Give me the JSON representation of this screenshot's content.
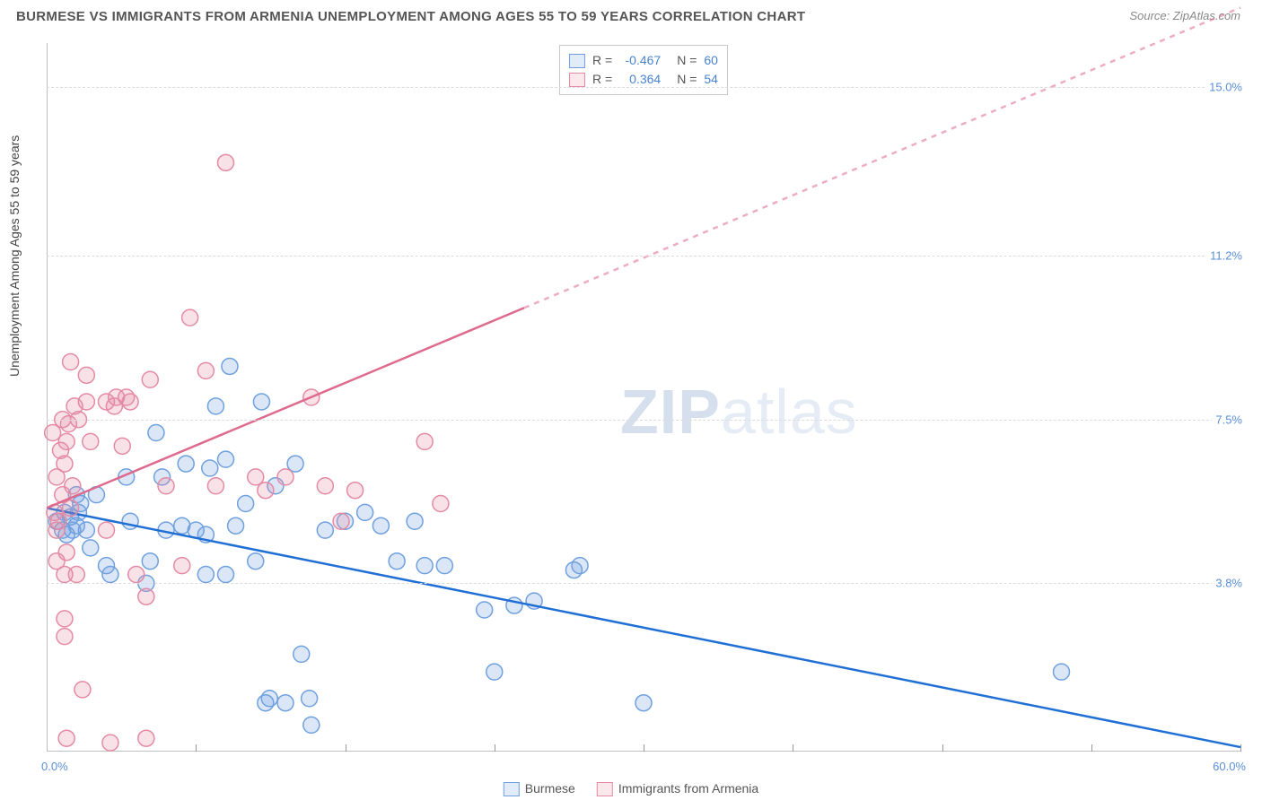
{
  "title": "BURMESE VS IMMIGRANTS FROM ARMENIA UNEMPLOYMENT AMONG AGES 55 TO 59 YEARS CORRELATION CHART",
  "source": "Source: ZipAtlas.com",
  "y_axis_label": "Unemployment Among Ages 55 to 59 years",
  "watermark_bold": "ZIP",
  "watermark_rest": "atlas",
  "chart": {
    "type": "scatter-correlation",
    "xlim": [
      0.0,
      60.0
    ],
    "ylim": [
      0.0,
      16.0
    ],
    "x_min_label": "0.0%",
    "x_max_label": "60.0%",
    "y_ticks": [
      3.8,
      7.5,
      11.2,
      15.0
    ],
    "y_tick_labels": [
      "3.8%",
      "7.5%",
      "11.2%",
      "15.0%"
    ],
    "x_tick_positions": [
      7.5,
      15,
      22.5,
      30,
      37.5,
      45,
      52.5,
      60
    ],
    "grid_color": "#dcdcdc",
    "axis_color": "#c0c0c0",
    "marker_radius": 9,
    "marker_fill_opacity": 0.25,
    "marker_stroke_width": 1.5,
    "trend_line_width": 2.5,
    "series": [
      {
        "name": "Burmese",
        "color": "#6fa0df",
        "trend_color": "#1f6fd4",
        "trend": {
          "x1": 0,
          "y1": 5.5,
          "x2": 60,
          "y2": 0.1
        },
        "trend_dash_after_x": 60,
        "data": [
          [
            0.5,
            5.2
          ],
          [
            0.8,
            5.0
          ],
          [
            0.9,
            5.4
          ],
          [
            1.0,
            4.9
          ],
          [
            1.2,
            5.3
          ],
          [
            1.3,
            5.0
          ],
          [
            1.5,
            5.1
          ],
          [
            1.6,
            5.4
          ],
          [
            1.7,
            5.6
          ],
          [
            1.5,
            5.8
          ],
          [
            2.0,
            5.0
          ],
          [
            2.2,
            4.6
          ],
          [
            2.5,
            5.8
          ],
          [
            3.0,
            4.2
          ],
          [
            3.2,
            4.0
          ],
          [
            4.0,
            6.2
          ],
          [
            4.2,
            5.2
          ],
          [
            5.0,
            3.8
          ],
          [
            5.2,
            4.3
          ],
          [
            5.5,
            7.2
          ],
          [
            5.8,
            6.2
          ],
          [
            6.0,
            5.0
          ],
          [
            6.8,
            5.1
          ],
          [
            7.0,
            6.5
          ],
          [
            7.5,
            5.0
          ],
          [
            8.0,
            4.9
          ],
          [
            8.0,
            4.0
          ],
          [
            8.2,
            6.4
          ],
          [
            8.5,
            7.8
          ],
          [
            9.0,
            6.6
          ],
          [
            9.0,
            4.0
          ],
          [
            9.5,
            5.1
          ],
          [
            10.0,
            5.6
          ],
          [
            10.5,
            4.3
          ],
          [
            10.8,
            7.9
          ],
          [
            11.0,
            1.1
          ],
          [
            11.2,
            1.2
          ],
          [
            11.5,
            6.0
          ],
          [
            12.0,
            1.1
          ],
          [
            12.5,
            6.5
          ],
          [
            13.2,
            1.2
          ],
          [
            13.3,
            0.6
          ],
          [
            14.0,
            5.0
          ],
          [
            15.0,
            5.2
          ],
          [
            16.0,
            5.4
          ],
          [
            16.8,
            5.1
          ],
          [
            17.6,
            4.3
          ],
          [
            18.5,
            5.2
          ],
          [
            19.0,
            4.2
          ],
          [
            20.0,
            4.2
          ],
          [
            22.0,
            3.2
          ],
          [
            22.5,
            1.8
          ],
          [
            23.5,
            3.3
          ],
          [
            24.5,
            3.4
          ],
          [
            26.5,
            4.1
          ],
          [
            26.8,
            4.2
          ],
          [
            30.0,
            1.1
          ],
          [
            51.0,
            1.8
          ],
          [
            9.2,
            8.7
          ],
          [
            12.8,
            2.2
          ]
        ]
      },
      {
        "name": "Immigrants from Armenia",
        "color": "#e48aa4",
        "trend_color": "#de6a8e",
        "trend": {
          "x1": 0,
          "y1": 5.5,
          "x2": 60,
          "y2": 16.8
        },
        "trend_dash_after_x": 24,
        "data": [
          [
            0.3,
            7.2
          ],
          [
            0.4,
            5.4
          ],
          [
            0.5,
            5.0
          ],
          [
            0.5,
            4.3
          ],
          [
            0.5,
            6.2
          ],
          [
            0.6,
            5.2
          ],
          [
            0.7,
            6.8
          ],
          [
            0.8,
            5.8
          ],
          [
            0.8,
            7.5
          ],
          [
            0.9,
            6.5
          ],
          [
            0.9,
            3.0
          ],
          [
            0.9,
            4.0
          ],
          [
            0.9,
            2.6
          ],
          [
            1.0,
            4.5
          ],
          [
            1.0,
            0.3
          ],
          [
            1.0,
            7.0
          ],
          [
            1.1,
            7.4
          ],
          [
            1.2,
            5.5
          ],
          [
            1.2,
            8.8
          ],
          [
            1.3,
            6.0
          ],
          [
            1.4,
            7.8
          ],
          [
            1.5,
            4.0
          ],
          [
            1.6,
            7.5
          ],
          [
            1.8,
            1.4
          ],
          [
            2.0,
            7.9
          ],
          [
            2.0,
            8.5
          ],
          [
            2.2,
            7.0
          ],
          [
            3.0,
            7.9
          ],
          [
            3.0,
            5.0
          ],
          [
            3.4,
            7.8
          ],
          [
            3.5,
            8.0
          ],
          [
            3.8,
            6.9
          ],
          [
            4.0,
            8.0
          ],
          [
            4.2,
            7.9
          ],
          [
            4.5,
            4.0
          ],
          [
            5.0,
            3.5
          ],
          [
            5.2,
            8.4
          ],
          [
            6.0,
            6.0
          ],
          [
            6.8,
            4.2
          ],
          [
            7.2,
            9.8
          ],
          [
            8.0,
            8.6
          ],
          [
            8.5,
            6.0
          ],
          [
            9.0,
            13.3
          ],
          [
            10.5,
            6.2
          ],
          [
            11.0,
            5.9
          ],
          [
            12.0,
            6.2
          ],
          [
            13.3,
            8.0
          ],
          [
            14.0,
            6.0
          ],
          [
            14.8,
            5.2
          ],
          [
            15.5,
            5.9
          ],
          [
            19.0,
            7.0
          ],
          [
            19.8,
            5.6
          ],
          [
            3.2,
            0.2
          ],
          [
            5.0,
            0.3
          ]
        ]
      }
    ]
  },
  "stats": {
    "rows": [
      {
        "swatch_color": "#6fa0df",
        "r_label": "R =",
        "r_value": "-0.467",
        "n_label": "N =",
        "n_value": "60"
      },
      {
        "swatch_color": "#e48aa4",
        "r_label": "R =",
        "r_value": "0.364",
        "n_label": "N =",
        "n_value": "54"
      }
    ]
  },
  "legend": {
    "items": [
      {
        "swatch_color": "#6fa0df",
        "label": "Burmese"
      },
      {
        "swatch_color": "#e48aa4",
        "label": "Immigrants from Armenia"
      }
    ]
  }
}
